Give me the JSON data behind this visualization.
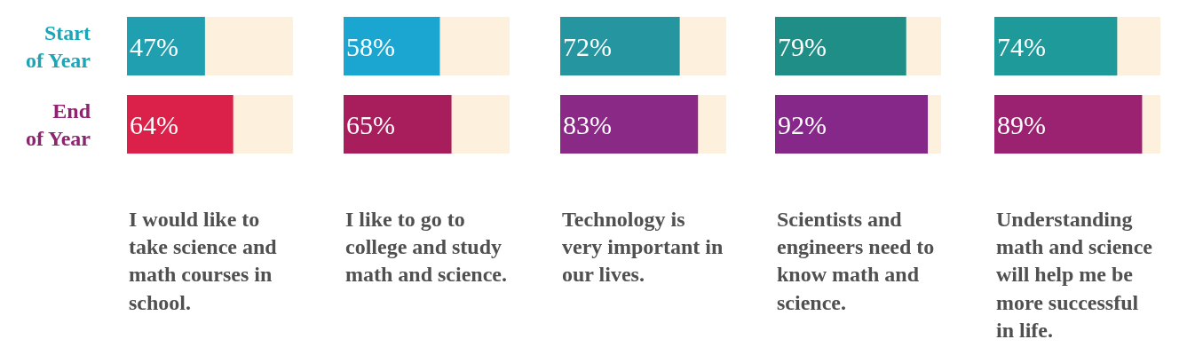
{
  "chart_data": [
    {
      "type": "bar",
      "orientation": "horizontal",
      "categories": [
        "Start of Year",
        "End of Year"
      ],
      "values": [
        47,
        64
      ],
      "value_labels": [
        "47%",
        "64%"
      ],
      "colors": [
        "#1f9fb0",
        "#db2149"
      ],
      "tick_labels": "y",
      "xlabel": "I would like to take science and math courses in school."
    },
    {
      "type": "bar",
      "orientation": "horizontal",
      "categories": [
        null,
        null
      ],
      "values": [
        58,
        65
      ],
      "value_labels": [
        "58%",
        "65%"
      ],
      "colors": [
        "#1aa6d0",
        "#a81d5c"
      ],
      "tick_labels": false,
      "xlabel": "I like to go to college and study math and science."
    },
    {
      "type": "bar",
      "orientation": "horizontal",
      "categories": [
        null,
        null
      ],
      "values": [
        72,
        83
      ],
      "value_labels": [
        "72%",
        "83%"
      ],
      "colors": [
        "#2596a0",
        "#8b2a86"
      ],
      "tick_labels": false,
      "xlabel": "Technology is very important in our lives."
    },
    {
      "type": "bar",
      "orientation": "horizontal",
      "categories": [
        null,
        null
      ],
      "values": [
        79,
        92
      ],
      "value_labels": [
        "79%",
        "92%"
      ],
      "colors": [
        "#1f8e86",
        "#86288a"
      ],
      "tick_labels": false,
      "xlabel": "Scientists and engineers need to know math and science."
    },
    {
      "type": "bar",
      "orientation": "horizontal",
      "categories": [
        null,
        null
      ],
      "values": [
        74,
        89
      ],
      "value_labels": [
        "74%",
        "89%"
      ],
      "colors": [
        "#1e9a9a",
        "#9a2270"
      ],
      "tick_labels": false,
      "xlabel": "Understanding math and science will help me be more successful in life."
    }
  ]
}
